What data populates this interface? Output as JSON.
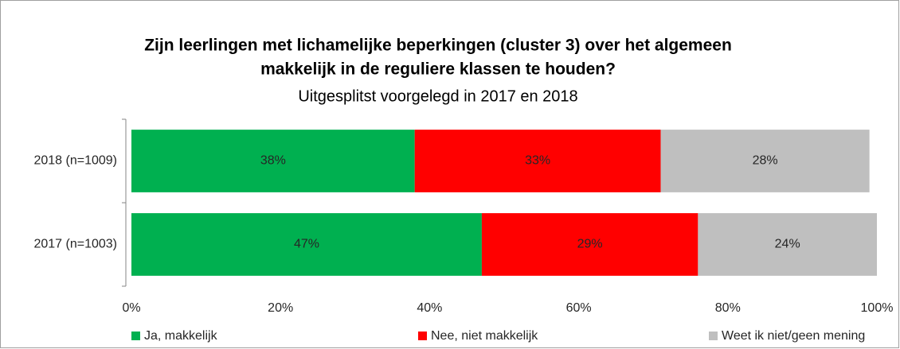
{
  "chart_data": {
    "type": "stacked-bar-horizontal",
    "title": [
      "Zijn leerlingen met lichamelijke beperkingen (cluster 3) over het algemeen",
      "makkelijk in de reguliere klassen te houden?"
    ],
    "subtitle": "Uitgesplitst voorgelegd in 2017 en 2018",
    "categories": [
      "2018 (n=1009)",
      "2017 (n=1003)"
    ],
    "series": [
      {
        "name": "Ja, makkelijk",
        "color": "#00b050",
        "values": [
          38,
          47
        ],
        "value_labels": [
          "38%",
          "47%"
        ]
      },
      {
        "name": "Nee, niet makkelijk",
        "color": "#ff0000",
        "values": [
          33,
          29
        ],
        "value_labels": [
          "33%",
          "29%"
        ]
      },
      {
        "name": "Weet ik niet/geen mening",
        "color": "#bfbfbf",
        "values": [
          28,
          24
        ],
        "value_labels": [
          "28%",
          "24%"
        ]
      }
    ],
    "xlim": [
      0,
      100
    ],
    "xticks": [
      {
        "value": 0,
        "label": "0%"
      },
      {
        "value": 20,
        "label": "20%"
      },
      {
        "value": 40,
        "label": "40%"
      },
      {
        "value": 60,
        "label": "60%"
      },
      {
        "value": 80,
        "label": "80%"
      },
      {
        "value": 100,
        "label": "100%"
      }
    ],
    "legend": "bottom"
  }
}
